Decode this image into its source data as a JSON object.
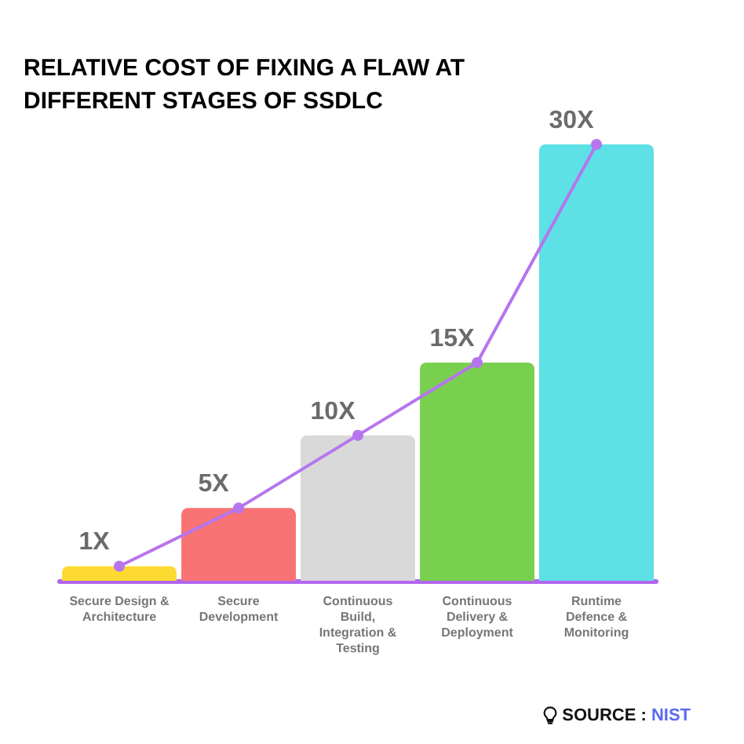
{
  "chart_data": {
    "type": "bar",
    "title": "RELATIVE COST OF FIXING A FLAW AT DIFFERENT STAGES OF SSDLC",
    "categories": [
      "Secure Design &\nArchitecture",
      "Secure\nDevelopment",
      "Continuous\nBuild,\nIntegration &\nTesting",
      "Continuous\nDelivery &\nDeployment",
      "Runtime\nDefence &\nMonitoring"
    ],
    "series": [
      {
        "colors": [
          "#fdda32",
          "#f87474",
          "#d9d9d9",
          "#79d04f",
          "#5de0e6"
        ],
        "values": [
          1,
          5,
          10,
          15,
          30
        ],
        "value_labels": [
          "1X",
          "5X",
          "10X",
          "15X",
          "30X"
        ]
      },
      {
        "type": "line",
        "color": "#b675ee",
        "values": [
          1,
          5,
          10,
          15,
          30
        ]
      }
    ],
    "marker": "circle",
    "tick_labels": "x",
    "annotations": [
      "SOURCE : NIST"
    ]
  }
}
